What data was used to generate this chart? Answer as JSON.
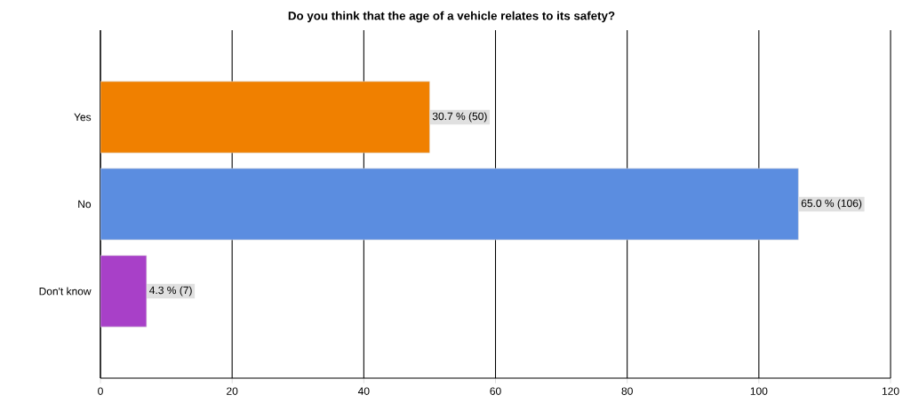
{
  "chart_data": {
    "type": "bar",
    "orientation": "horizontal",
    "title": "Do you think that the age of a vehicle relates to its safety?",
    "categories": [
      "Yes",
      "No",
      "Don't know"
    ],
    "values": [
      50,
      106,
      7
    ],
    "colors": [
      "#f08000",
      "#5b8de0",
      "#a840c8"
    ],
    "value_labels": [
      "30.7 % (50)",
      "65.0 % (106)",
      "4.3 % (7)"
    ],
    "xlim": [
      0,
      120
    ],
    "xticks": [
      0,
      20,
      40,
      60,
      80,
      100,
      120
    ],
    "grid": "x"
  }
}
